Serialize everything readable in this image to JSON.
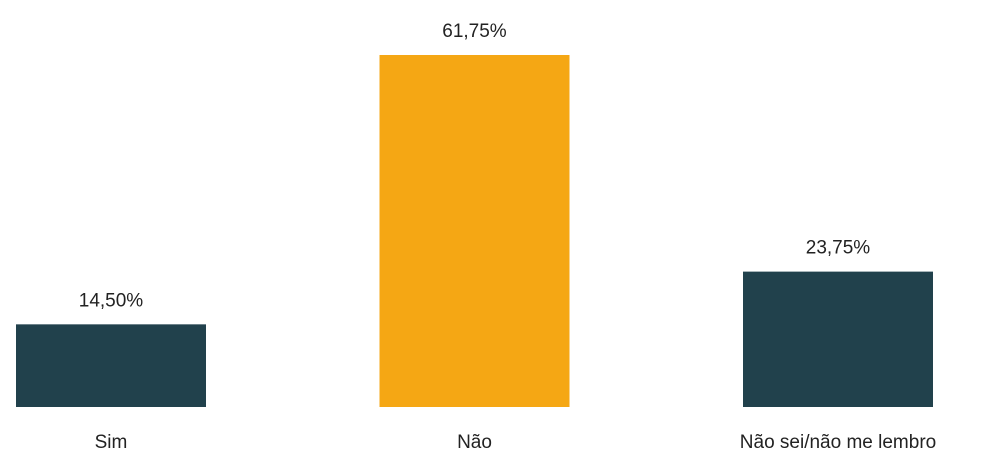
{
  "chart_data": {
    "type": "bar",
    "categories": [
      "Sim",
      "Não",
      "Não sei/não me lembro"
    ],
    "values": [
      14.5,
      61.75,
      23.75
    ],
    "value_labels": [
      "14,50%",
      "61,75%",
      "23,75%"
    ],
    "colors": [
      "#21414c",
      "#f5a714",
      "#21414c"
    ]
  }
}
